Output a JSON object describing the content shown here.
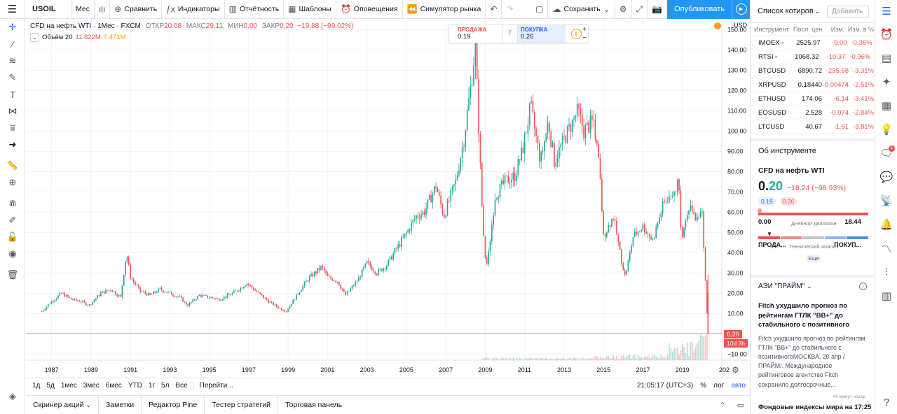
{
  "toolbar": {
    "symbol": "USOIL",
    "interval": "Мес",
    "compare": "Сравнить",
    "indicators": "Индикаторы",
    "financials": "Отчётность",
    "templates": "Шаблоны",
    "alerts": "Оповещения",
    "replay": "Симулятор рынка",
    "save": "Сохранить",
    "publish": "Опубликовать"
  },
  "legend": {
    "title": "CFD на нефть WTI · 1Мес · FXCM",
    "open_label": "ОТКР",
    "open": "20.08",
    "high_label": "МАКС",
    "high": "29.11",
    "low_label": "МИН",
    "low": "0.00",
    "close_label": "ЗАКР",
    "close": "0.20",
    "change": "−19.88 (−99.02%)",
    "volume_label": "Объём 20",
    "volume_value": "11.822M",
    "volume_ma": "7.471M"
  },
  "trade": {
    "sell_label": "ПРОДАЖА",
    "sell_price": "0.19",
    "spread": "7",
    "buy_label": "ПОКУПКА",
    "buy_price": "0.26"
  },
  "price_axis": {
    "currency": "USD",
    "last_price_tag": "0.20",
    "countdown_tag": "10d 3h"
  },
  "range_bar": {
    "ranges": [
      "1д",
      "5д",
      "1мес",
      "3мес",
      "6мес",
      "YTD",
      "1г",
      "5л",
      "Все"
    ],
    "goto": "Перейти...",
    "clock": "21:05:17 (UTC+3)",
    "percent": "%",
    "log": "лог",
    "auto": "авто"
  },
  "bottom_tabs": [
    "Скринер акций",
    "Заметки",
    "Редактор Pine",
    "Тестер стратегий",
    "Торговая панель"
  ],
  "watchlist": {
    "title": "Список котиров",
    "add": "Добавить",
    "columns": [
      "Инструмент",
      "Посл. цен",
      "Изм.",
      "Изм. в %"
    ],
    "rows": [
      {
        "symbol": "IMOEX",
        "last": "2525.97",
        "chg": "-9.00",
        "pct": "-0.36%",
        "dot": true
      },
      {
        "symbol": "RTSI",
        "last": "1068.32",
        "chg": "-10.37",
        "pct": "-0.96%",
        "dot": true
      },
      {
        "symbol": "BTCUSD",
        "last": "6890.72",
        "chg": "-235.68",
        "pct": "-3.31%",
        "dot": false
      },
      {
        "symbol": "XRPUSD",
        "last": "0.18440",
        "chg": "-0.00474",
        "pct": "-2.51%",
        "dot": false
      },
      {
        "symbol": "ETHUSD",
        "last": "174.06",
        "chg": "-6.14",
        "pct": "-3.41%",
        "dot": false
      },
      {
        "symbol": "EOSUSD",
        "last": "2.528",
        "chg": "-0.074",
        "pct": "-2.84%",
        "dot": false
      },
      {
        "symbol": "LTCUSD",
        "last": "40.67",
        "chg": "-1.61",
        "pct": "-3.81%",
        "dot": false
      }
    ]
  },
  "instrument": {
    "header": "Об инструменте",
    "name": "CFD на нефть WTI",
    "price_int": "0.",
    "price_dec": "20",
    "change": "−18.24 (−98.93%)",
    "bid": "0.19",
    "ask": "0.26",
    "day_low": "0.00",
    "day_high": "18.44",
    "day_range_label": "Дневной диапазон",
    "tech_sell": "ПРОДА...",
    "tech_label": "Технический анализ",
    "tech_buy": "ПОКУП...",
    "more": "Ещё"
  },
  "news": {
    "source": "АЭИ \"ПРАЙМ\"",
    "title": "Fitch ухудшило прогноз по рейтингам ГТЛК \"BB+\" до стабильного с позитивного",
    "body": "Fitch ухудшило прогноз по рейтингам ГТЛК \"BB+\" до стабильного с позитивногоМОСКВА, 20 апр /ПРАЙМ/. Международное рейтинговое агентство Fitch сохранило долгосрочные...",
    "ago": "40 минут назад",
    "next_title": "Фондовые индексы мира на 17:25"
  },
  "colors": {
    "up": "#26a69a",
    "down": "#ef5350",
    "accent": "#2196f3"
  },
  "chart_data": {
    "type": "candlestick",
    "symbol": "USOIL",
    "interval": "1M",
    "x_ticks": [
      "1987",
      "1989",
      "1991",
      "1993",
      "1995",
      "1997",
      "1999",
      "2001",
      "2003",
      "2005",
      "2007",
      "2009",
      "2011",
      "2013",
      "2015",
      "2017",
      "2019",
      "202"
    ],
    "y_ticks": [
      150,
      140,
      130,
      120,
      110,
      100,
      90,
      80,
      70,
      60,
      50,
      40,
      30,
      20,
      10,
      -10
    ],
    "ylim": [
      -13,
      155
    ],
    "xlim": [
      1985.7,
      2021.0
    ],
    "last_price": 0.2,
    "approx_monthly_closes": [
      [
        1986.5,
        11
      ],
      [
        1986.9,
        15
      ],
      [
        1987.5,
        20
      ],
      [
        1988.0,
        17
      ],
      [
        1988.5,
        16
      ],
      [
        1988.9,
        14
      ],
      [
        1989.5,
        20
      ],
      [
        1990.0,
        22
      ],
      [
        1990.5,
        18
      ],
      [
        1990.8,
        40
      ],
      [
        1991.0,
        28
      ],
      [
        1991.5,
        21
      ],
      [
        1992.0,
        19
      ],
      [
        1992.5,
        22
      ],
      [
        1993.0,
        20
      ],
      [
        1993.5,
        18
      ],
      [
        1993.9,
        14
      ],
      [
        1994.5,
        19
      ],
      [
        1995.0,
        18
      ],
      [
        1995.5,
        17
      ],
      [
        1996.0,
        19
      ],
      [
        1996.5,
        22
      ],
      [
        1996.9,
        25
      ],
      [
        1997.5,
        20
      ],
      [
        1998.0,
        16
      ],
      [
        1998.5,
        13
      ],
      [
        1998.9,
        11
      ],
      [
        1999.5,
        20
      ],
      [
        2000.0,
        27
      ],
      [
        2000.7,
        33
      ],
      [
        2001.0,
        28
      ],
      [
        2001.5,
        26
      ],
      [
        2001.9,
        19
      ],
      [
        2002.5,
        26
      ],
      [
        2003.0,
        35
      ],
      [
        2003.5,
        30
      ],
      [
        2004.0,
        34
      ],
      [
        2004.5,
        42
      ],
      [
        2004.9,
        48
      ],
      [
        2005.5,
        58
      ],
      [
        2005.9,
        60
      ],
      [
        2006.5,
        73
      ],
      [
        2006.9,
        58
      ],
      [
        2007.5,
        75
      ],
      [
        2007.9,
        95
      ],
      [
        2008.3,
        125
      ],
      [
        2008.5,
        142
      ],
      [
        2008.8,
        70
      ],
      [
        2008.95,
        40
      ],
      [
        2009.1,
        34
      ],
      [
        2009.5,
        68
      ],
      [
        2010.0,
        75
      ],
      [
        2010.5,
        78
      ],
      [
        2010.9,
        91
      ],
      [
        2011.3,
        112
      ],
      [
        2011.8,
        85
      ],
      [
        2012.2,
        105
      ],
      [
        2012.5,
        85
      ],
      [
        2013.0,
        96
      ],
      [
        2013.7,
        110
      ],
      [
        2014.0,
        100
      ],
      [
        2014.5,
        105
      ],
      [
        2014.8,
        80
      ],
      [
        2015.0,
        48
      ],
      [
        2015.5,
        58
      ],
      [
        2015.9,
        37
      ],
      [
        2016.1,
        28
      ],
      [
        2016.5,
        48
      ],
      [
        2017.0,
        53
      ],
      [
        2017.5,
        46
      ],
      [
        2018.0,
        63
      ],
      [
        2018.8,
        75
      ],
      [
        2018.95,
        45
      ],
      [
        2019.3,
        64
      ],
      [
        2019.8,
        55
      ],
      [
        2020.0,
        61
      ],
      [
        2020.2,
        20
      ],
      [
        2020.3,
        0.2
      ]
    ],
    "volume_note": "volume histogram along bottom, spiking in 2020"
  }
}
